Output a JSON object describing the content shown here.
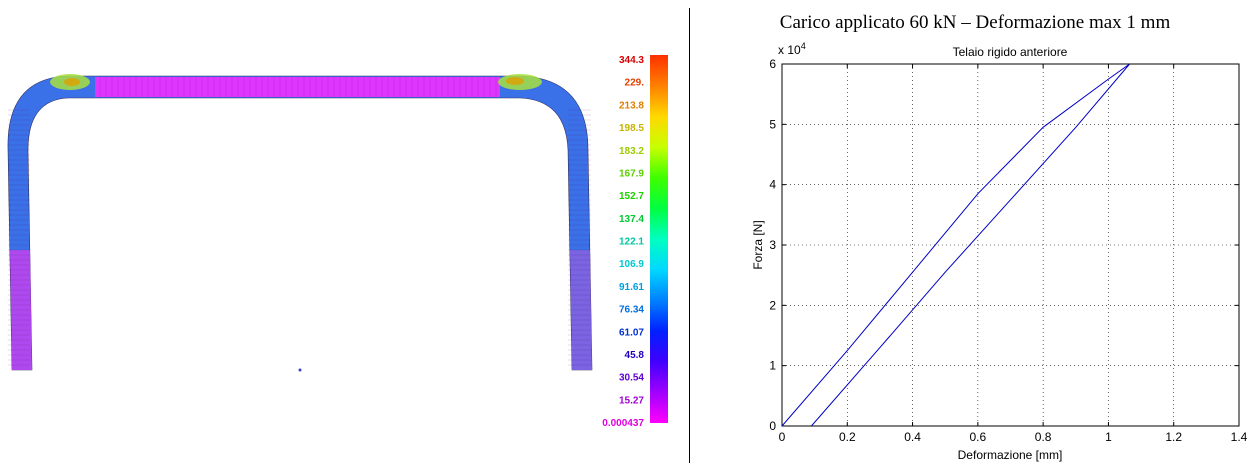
{
  "heading": "Carico applicato 60 kN – Deformazione max 1 mm",
  "fem": {
    "legend_values": [
      "344.3",
      "229.",
      "213.8",
      "198.5",
      "183.2",
      "167.9",
      "152.7",
      "137.4",
      "122.1",
      "106.9",
      "91.61",
      "76.34",
      "61.07",
      "45.8",
      "30.54",
      "15.27",
      "0.000437"
    ],
    "legend_colors": [
      "#d80000",
      "#e04000",
      "#e08000",
      "#c8b400",
      "#9ccc00",
      "#5cd000",
      "#1cd000",
      "#00c830",
      "#00c8a0",
      "#00c8d0",
      "#00a0e0",
      "#0070e0",
      "#0030d0",
      "#2000c0",
      "#6000d0",
      "#a000d8",
      "#e000e0"
    ],
    "scale_gradient": [
      "#ff3000",
      "#ff8000",
      "#ffd800",
      "#c8ff00",
      "#40ff00",
      "#00ff40",
      "#00ffc0",
      "#00d8ff",
      "#0080ff",
      "#0020ff",
      "#4000ff",
      "#a000ff",
      "#ff00ff"
    ]
  },
  "chart_data": {
    "type": "line",
    "title": "Telaio rigido anteriore",
    "xlabel": "Deformazione [mm]",
    "ylabel": "Forza [N]",
    "y_multiplier": "x 10",
    "y_multiplier_exp": "4",
    "xlim": [
      0,
      1.4
    ],
    "ylim": [
      0,
      6
    ],
    "xticks": [
      "0",
      "0.2",
      "0.4",
      "0.6",
      "0.8",
      "1",
      "1.2",
      "1.4"
    ],
    "yticks": [
      "0",
      "1",
      "2",
      "3",
      "4",
      "5",
      "6"
    ],
    "grid": true,
    "line_color": "#0000c8",
    "series": [
      {
        "x": [
          0,
          0.2,
          0.4,
          0.6,
          0.8,
          1.0,
          1.065
        ],
        "y": [
          0,
          1.25,
          2.55,
          3.85,
          4.95,
          5.75,
          6.0
        ]
      },
      {
        "x": [
          0.09,
          0.3,
          0.5,
          0.7,
          0.9,
          1.065
        ],
        "y": [
          0,
          1.3,
          2.55,
          3.75,
          4.95,
          6.0
        ]
      }
    ]
  }
}
